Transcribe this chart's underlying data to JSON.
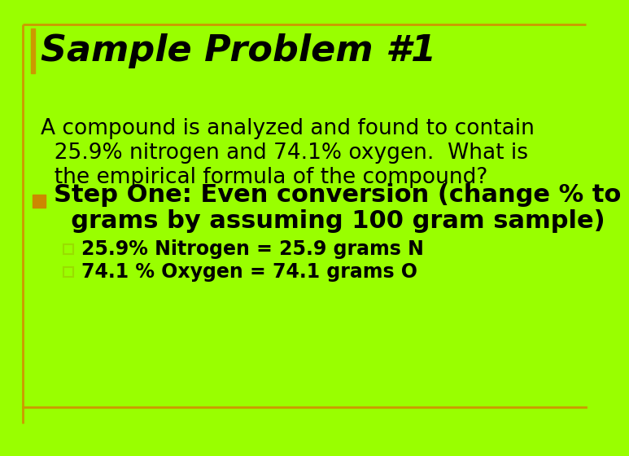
{
  "background_color": "#99ff00",
  "border_color": "#cc9900",
  "title": "Sample Problem #1",
  "title_fontsize": 32,
  "title_color": "#000000",
  "body_text_line1": "A compound is analyzed and found to contain",
  "body_text_line2": "  25.9% nitrogen and 74.1% oxygen.  What is",
  "body_text_line3": "  the empirical formula of the compound?",
  "body_fontsize": 19,
  "body_color": "#000000",
  "bullet_marker_color": "#cc8800",
  "bullet_text_line1": "Step One: Even conversion (change % to",
  "bullet_text_line2": "  grams by assuming 100 gram sample)",
  "bullet_fontsize": 22,
  "sub_bullet_1": "25.9% Nitrogen = 25.9 grams N",
  "sub_bullet_2": "74.1 % Oxygen = 74.1 grams O",
  "sub_bullet_fontsize": 17,
  "sub_bullet_color": "#000000",
  "sub_bullet_sq_color": "#99dd00",
  "bottom_line_color": "#cc9900"
}
